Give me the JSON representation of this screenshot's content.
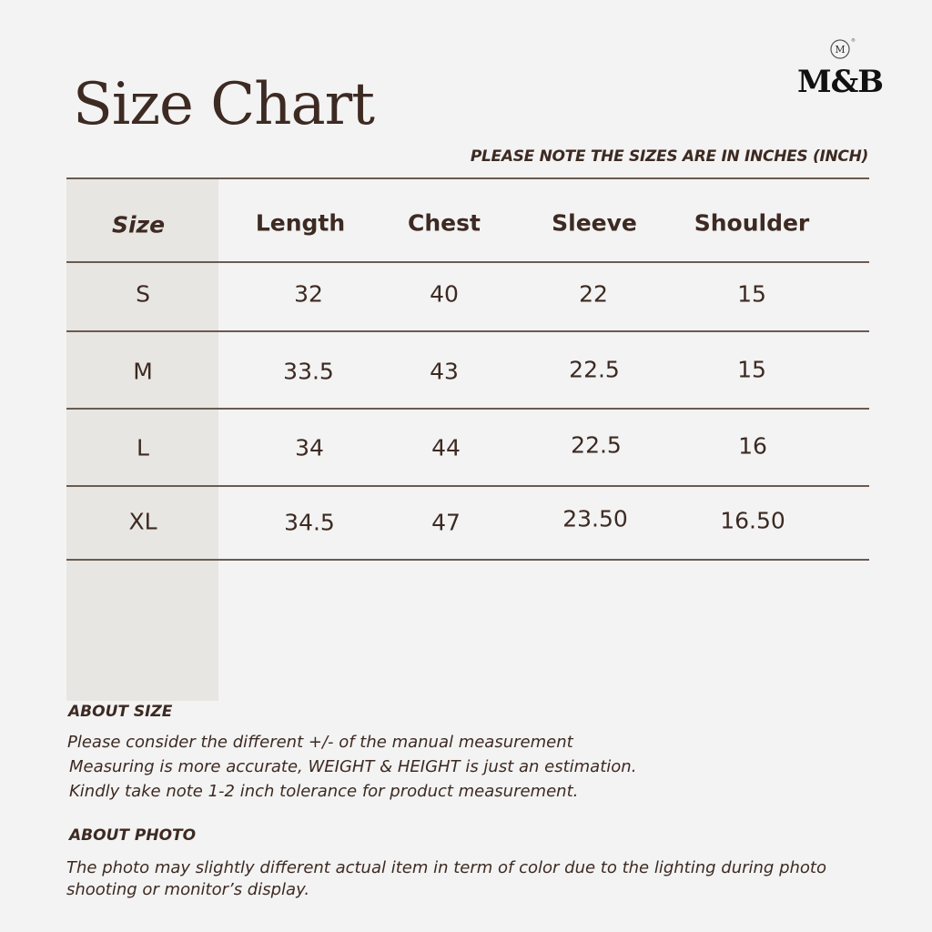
{
  "title": "Size Chart",
  "brand": "M&B",
  "note": "PLEASE NOTE THE SIZES ARE IN INCHES (INCH)",
  "table": {
    "headers": [
      "Size",
      "Length",
      "Chest",
      "Sleeve",
      "Shoulder"
    ],
    "rows": [
      [
        "S",
        "32",
        "40",
        "22",
        "15"
      ],
      [
        "M",
        "33.5",
        "43",
        "22.5",
        "15"
      ],
      [
        "L",
        "34",
        "44",
        "22.5",
        "16"
      ],
      [
        "XL",
        "34.5",
        "47",
        "23.50",
        "16.50"
      ]
    ]
  },
  "about_size": {
    "heading": "ABOUT SIZE",
    "lines": [
      "Please consider the different +/- of the manual measurement",
      "Measuring is more accurate, WEIGHT & HEIGHT is just an estimation.",
      "Kindly take note 1-2 inch tolerance for product measurement."
    ]
  },
  "about_photo": {
    "heading": "ABOUT PHOTO",
    "lines": [
      "The photo may slightly different actual item in term of color due to the lighting during photo",
      "shooting or monitor’s display."
    ]
  },
  "colors": {
    "text": "#3d2a22",
    "background": "#f3f3f3",
    "size_column": "#e8e6e2",
    "rule": "#6b5a50"
  }
}
